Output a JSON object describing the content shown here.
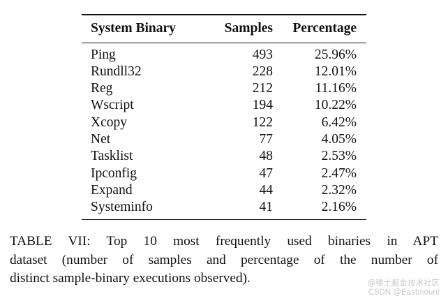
{
  "table": {
    "headers": [
      "System Binary",
      "Samples",
      "Percentage"
    ],
    "rows": [
      [
        "Ping",
        "493",
        "25.96%"
      ],
      [
        "Rundll32",
        "228",
        "12.01%"
      ],
      [
        "Reg",
        "212",
        "11.16%"
      ],
      [
        "Wscript",
        "194",
        "10.22%"
      ],
      [
        "Xcopy",
        "122",
        "6.42%"
      ],
      [
        "Net",
        "77",
        "4.05%"
      ],
      [
        "Tasklist",
        "48",
        "2.53%"
      ],
      [
        "Ipconfig",
        "47",
        "2.47%"
      ],
      [
        "Expand",
        "44",
        "2.32%"
      ],
      [
        "Systeminfo",
        "41",
        "2.16%"
      ]
    ]
  },
  "caption": {
    "lines": [
      "TABLE VII: Top 10 most frequently used binaries in APT",
      "dataset (number of samples and percentage of the number of",
      "distinct sample-binary executions observed)."
    ]
  },
  "watermark": {
    "line1": "@稀土掘金技术社区",
    "line2": "CSDN @Eastmount"
  }
}
